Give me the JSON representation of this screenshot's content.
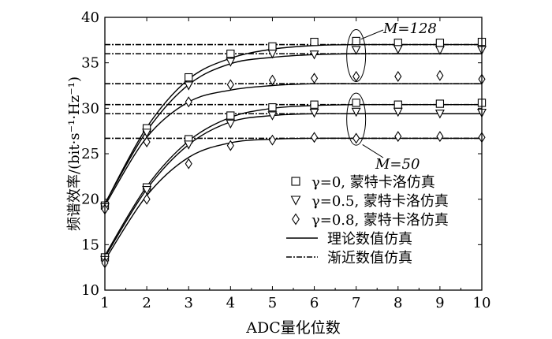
{
  "chart_data": {
    "type": "line",
    "xlabel": "ADC量化位数",
    "ylabel": "频谱效率/(bit·s⁻¹·Hz⁻¹)",
    "xlim": [
      1,
      10
    ],
    "ylim": [
      10,
      40
    ],
    "xticks": [
      1,
      2,
      3,
      4,
      5,
      6,
      7,
      8,
      9,
      10
    ],
    "yticks": [
      10,
      15,
      20,
      25,
      30,
      35,
      40
    ],
    "grid": false,
    "legend_position": "right-middle",
    "annotations": [
      {
        "text": "M=128"
      },
      {
        "text": "M=50"
      }
    ],
    "legend": [
      {
        "label": "γ=0, 蒙特卡洛仿真",
        "marker": "square"
      },
      {
        "label": "γ=0.5, 蒙特卡洛仿真",
        "marker": "triangle-down"
      },
      {
        "label": "γ=0.8, 蒙特卡洛仿真",
        "marker": "diamond"
      },
      {
        "label": "理论数值仿真",
        "line": "solid"
      },
      {
        "label": "渐近数值仿真",
        "line": "dashed"
      }
    ],
    "x": [
      1,
      2,
      3,
      4,
      5,
      6,
      7,
      8,
      9,
      10
    ],
    "series": [
      {
        "M": 128,
        "gamma": 0,
        "theory": [
          19.5,
          27.9,
          33.2,
          35.5,
          36.5,
          36.9,
          37.0,
          37.0,
          37.0,
          37.0
        ],
        "montecarlo": [
          19.3,
          27.8,
          33.4,
          36.0,
          36.8,
          37.3,
          37.4,
          37.2,
          37.2,
          37.3
        ],
        "asymptote": 37.0
      },
      {
        "M": 128,
        "gamma": 0.5,
        "theory": [
          19.5,
          27.5,
          32.6,
          34.9,
          35.6,
          35.9,
          36.0,
          36.0,
          36.0,
          36.0
        ],
        "montecarlo": [
          19.1,
          27.3,
          32.5,
          35.1,
          36.0,
          35.9,
          36.4,
          36.5,
          36.4,
          36.4
        ],
        "asymptote": 36.0
      },
      {
        "M": 128,
        "gamma": 0.8,
        "theory": [
          19.3,
          26.8,
          30.7,
          32.0,
          32.5,
          32.7,
          32.7,
          32.7,
          32.7,
          32.7
        ],
        "montecarlo": [
          18.9,
          26.3,
          30.7,
          32.6,
          33.1,
          33.3,
          33.5,
          33.5,
          33.6,
          33.2
        ],
        "asymptote": 32.7
      },
      {
        "M": 50,
        "gamma": 0,
        "theory": [
          13.8,
          21.4,
          26.4,
          29.0,
          30.0,
          30.3,
          30.4,
          30.4,
          30.4,
          30.4
        ],
        "montecarlo": [
          13.6,
          21.3,
          26.6,
          29.2,
          30.1,
          30.4,
          30.6,
          30.4,
          30.5,
          30.6
        ],
        "asymptote": 30.4
      },
      {
        "M": 50,
        "gamma": 0.5,
        "theory": [
          13.6,
          21.1,
          26.0,
          28.5,
          29.2,
          29.4,
          29.4,
          29.4,
          29.4,
          29.4
        ],
        "montecarlo": [
          13.3,
          21.0,
          26.0,
          28.3,
          29.2,
          29.5,
          29.6,
          29.6,
          29.4,
          29.5
        ],
        "asymptote": 29.4
      },
      {
        "M": 50,
        "gamma": 0.8,
        "theory": [
          13.3,
          20.4,
          24.6,
          26.2,
          26.6,
          26.7,
          26.7,
          26.7,
          26.7,
          26.7
        ],
        "montecarlo": [
          13.0,
          20.0,
          23.9,
          25.9,
          26.5,
          26.8,
          26.7,
          26.9,
          26.9,
          26.8
        ],
        "asymptote": 26.7
      }
    ]
  }
}
